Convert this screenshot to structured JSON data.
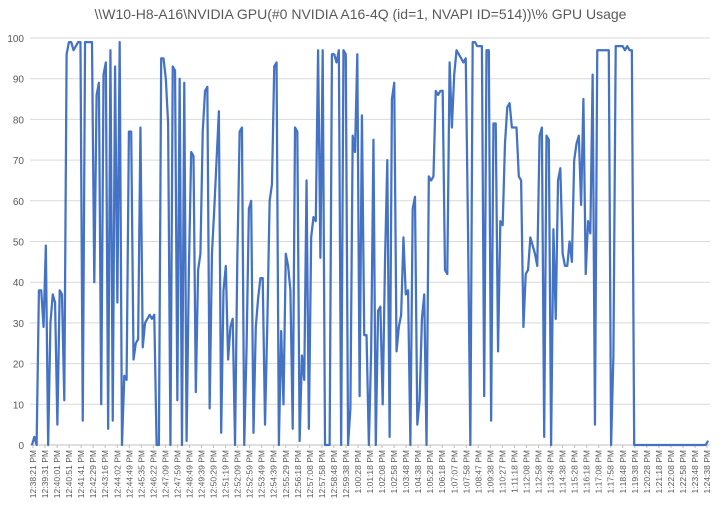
{
  "chart_data": {
    "type": "line",
    "title": "\\\\W10-H8-A16\\NVIDIA GPU(#0 NVIDIA A16-4Q (id=1, NVAPI ID=514))\\% GPU Usage",
    "xlabel": "",
    "ylabel": "",
    "ylim": [
      0,
      100
    ],
    "yticks": [
      0,
      10,
      20,
      30,
      40,
      50,
      60,
      70,
      80,
      90,
      100
    ],
    "grid": "horizontal",
    "legend": "none",
    "line_color": "#4472C4",
    "x_tick_labels": [
      "12:38:21 PM",
      "12:39:31 PM",
      "12:40:01 PM",
      "12:40:51 PM",
      "12:41:41 PM",
      "12:42:29 PM",
      "12:43:16 PM",
      "12:44:02 PM",
      "12:44:49 PM",
      "12:45:35 PM",
      "12:46:22 PM",
      "12:47:09 PM",
      "12:47:59 PM",
      "12:48:49 PM",
      "12:49:39 PM",
      "12:50:29 PM",
      "12:51:19 PM",
      "12:52:09 PM",
      "12:52:59 PM",
      "12:53:49 PM",
      "12:54:39 PM",
      "12:55:29 PM",
      "12:56:18 PM",
      "12:57:08 PM",
      "12:57:58 PM",
      "12:58:48 PM",
      "12:59:38 PM",
      "1:00:28 PM",
      "1:01:18 PM",
      "1:02:08 PM",
      "1:02:58 PM",
      "1:03:48 PM",
      "1:04:38 PM",
      "1:05:28 PM",
      "1:06:18 PM",
      "1:07:07 PM",
      "1:07:58 PM",
      "1:08:47 PM",
      "1:09:38 PM",
      "1:10:27 PM",
      "1:11:18 PM",
      "1:12:08 PM",
      "1:12:58 PM",
      "1:13:48 PM",
      "1:14:38 PM",
      "1:15:28 PM",
      "1:16:18 PM",
      "1:17:08 PM",
      "1:17:58 PM",
      "1:18:48 PM",
      "1:19:38 PM",
      "1:20:28 PM",
      "1:21:18 PM",
      "1:22:08 PM",
      "1:22:58 PM",
      "1:23:48 PM",
      "1:24:38 PM"
    ],
    "series": [
      {
        "name": "",
        "values": [
          0,
          2,
          0,
          38,
          38,
          29,
          49,
          0,
          30,
          37,
          35,
          5,
          38,
          37,
          11,
          96,
          99,
          99,
          97,
          98,
          99,
          99,
          6,
          99,
          99,
          99,
          99,
          40,
          86,
          89,
          10,
          91,
          94,
          4,
          97,
          6,
          93,
          35,
          99,
          0,
          17,
          16,
          77,
          77,
          21,
          25,
          26,
          78,
          24,
          30,
          31,
          32,
          31,
          32,
          0,
          0,
          95,
          95,
          90,
          79,
          0,
          93,
          92,
          11,
          90,
          0,
          89,
          1,
          43,
          72,
          71,
          13,
          43,
          47,
          77,
          87,
          88,
          9,
          47,
          58,
          70,
          82,
          3,
          38,
          44,
          21,
          29,
          31,
          0,
          46,
          77,
          78,
          0,
          24,
          58,
          60,
          3,
          29,
          36,
          41,
          41,
          5,
          30,
          60,
          64,
          93,
          94,
          0,
          28,
          10,
          47,
          44,
          38,
          4,
          78,
          77,
          1,
          22,
          16,
          65,
          4,
          51,
          56,
          55,
          97,
          46,
          97,
          0,
          0,
          0,
          96,
          96,
          94,
          97,
          0,
          97,
          96,
          0,
          9,
          76,
          72,
          96,
          12,
          81,
          27,
          27,
          0,
          23,
          75,
          0,
          33,
          34,
          10,
          45,
          70,
          2,
          85,
          89,
          23,
          29,
          32,
          51,
          37,
          38,
          0,
          58,
          61,
          5,
          11,
          31,
          37,
          0,
          66,
          65,
          66,
          87,
          86,
          87,
          87,
          43,
          42,
          94,
          78,
          91,
          97,
          96,
          95,
          94,
          95,
          52,
          0,
          99,
          99,
          98,
          98,
          98,
          12,
          97,
          97,
          6,
          79,
          79,
          23,
          55,
          54,
          74,
          83,
          84,
          78,
          78,
          78,
          66,
          65,
          29,
          42,
          43,
          51,
          49,
          47,
          44,
          76,
          78,
          2,
          76,
          75,
          0,
          53,
          31,
          65,
          68,
          47,
          44,
          44,
          50,
          45,
          70,
          74,
          76,
          59,
          85,
          42,
          55,
          52,
          91,
          5,
          97,
          97,
          97,
          97,
          97,
          97,
          0,
          22,
          98,
          98,
          98,
          98,
          97,
          98,
          97,
          97,
          0,
          0,
          0,
          0,
          0,
          0,
          0,
          0,
          0,
          0,
          0,
          0,
          0,
          0,
          0,
          0,
          0,
          0,
          0,
          0,
          0,
          0,
          0,
          0,
          0,
          0,
          0,
          0,
          0,
          0,
          0,
          0,
          1
        ]
      }
    ]
  }
}
